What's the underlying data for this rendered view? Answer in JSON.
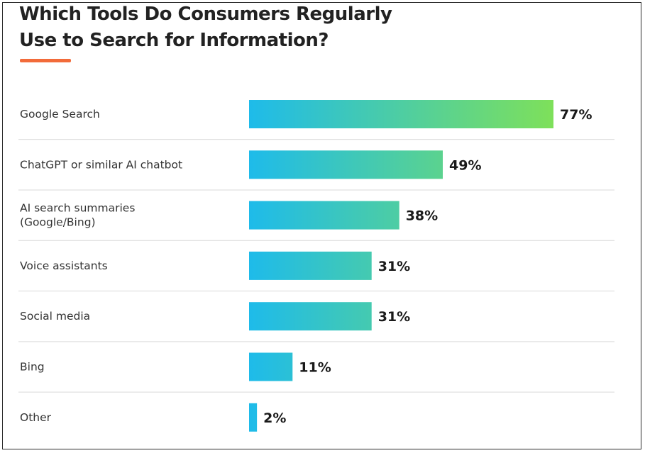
{
  "chart_data": {
    "type": "bar",
    "orientation": "horizontal",
    "title_lines": [
      "Which Tools Do Consumers Regularly",
      "Use to Search for Information?"
    ],
    "categories": [
      [
        "Google Search"
      ],
      [
        "ChatGPT or similar AI chatbot"
      ],
      [
        "AI search summaries",
        "(Google/Bing)"
      ],
      [
        "Voice assistants"
      ],
      [
        "Social media"
      ],
      [
        "Bing"
      ],
      [
        "Other"
      ]
    ],
    "values": [
      77,
      49,
      38,
      31,
      31,
      11,
      2
    ],
    "value_labels": [
      "77%",
      "49%",
      "38%",
      "31%",
      "31%",
      "11%",
      "2%"
    ],
    "xlim": [
      0,
      77
    ],
    "unit": "%"
  },
  "colors": {
    "accent": "#f26b3a",
    "bar_start": "#1ebbea",
    "bar_end": "#7ee05a",
    "divider": "#d9d9d9",
    "label": "#333333",
    "value": "#1a1a1a"
  }
}
